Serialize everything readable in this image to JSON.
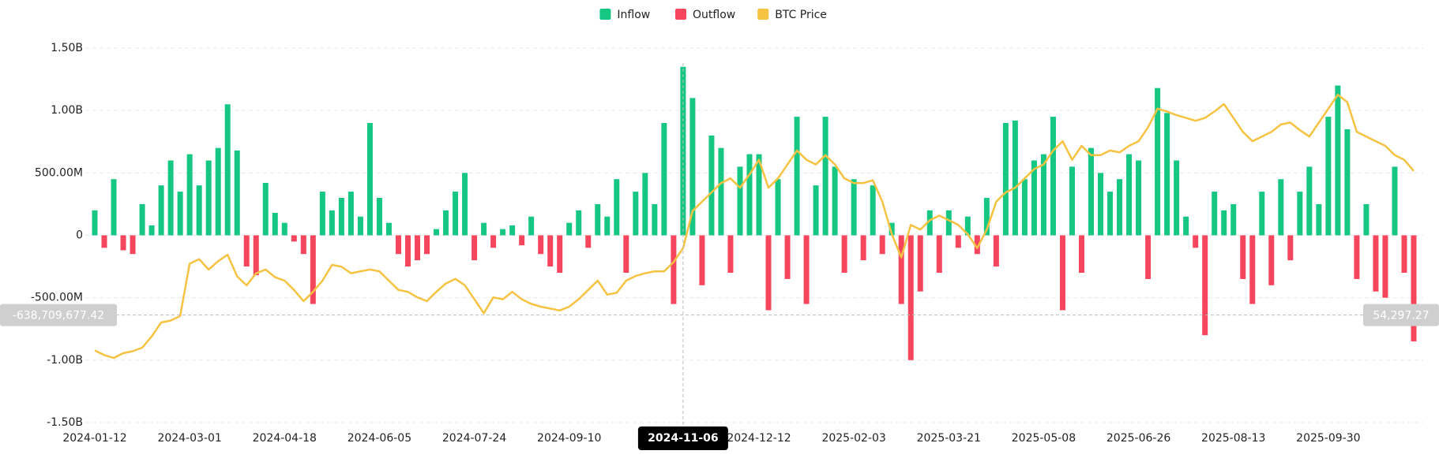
{
  "chart_data": {
    "type": "bar",
    "categories": [
      "2024-01-12",
      null,
      null,
      null,
      null,
      null,
      null,
      null,
      null,
      null,
      "2024-03-01",
      null,
      null,
      null,
      null,
      null,
      null,
      null,
      null,
      null,
      "2024-04-18",
      null,
      null,
      null,
      null,
      null,
      null,
      null,
      null,
      null,
      "2024-06-05",
      null,
      null,
      null,
      null,
      null,
      null,
      null,
      null,
      null,
      "2024-07-24",
      null,
      null,
      null,
      null,
      null,
      null,
      null,
      null,
      null,
      "2024-09-10",
      null,
      null,
      null,
      null,
      null,
      null,
      null,
      null,
      null,
      null,
      null,
      "2024-11-06",
      null,
      null,
      null,
      null,
      null,
      null,
      null,
      "2024-12-12",
      null,
      null,
      null,
      null,
      null,
      null,
      null,
      null,
      null,
      "2025-02-03",
      null,
      null,
      null,
      null,
      null,
      null,
      null,
      null,
      null,
      "2025-03-21",
      null,
      null,
      null,
      null,
      null,
      null,
      null,
      null,
      null,
      "2025-05-08",
      null,
      null,
      null,
      null,
      null,
      null,
      null,
      null,
      null,
      "2025-06-26",
      null,
      null,
      null,
      null,
      null,
      null,
      null,
      null,
      null,
      "2025-08-13",
      null,
      null,
      null,
      null,
      null,
      null,
      null,
      null,
      null,
      "2025-09-30",
      null,
      null,
      null,
      null,
      null,
      null,
      null,
      null,
      null
    ],
    "series": [
      {
        "name": "Inflow",
        "color": "#16c784",
        "values": [
          200000000.0,
          null,
          450000000.0,
          null,
          null,
          250000000.0,
          80000000.0,
          400000000.0,
          600000000.0,
          350000000.0,
          650000000.0,
          400000000.0,
          600000000.0,
          700000000.0,
          1050000000.0,
          680000000.0,
          null,
          null,
          420000000.0,
          180000000.0,
          100000000.0,
          null,
          null,
          null,
          350000000.0,
          200000000.0,
          300000000.0,
          350000000.0,
          150000000.0,
          900000000.0,
          300000000.0,
          100000000.0,
          null,
          null,
          null,
          null,
          50000000.0,
          200000000.0,
          350000000.0,
          500000000.0,
          null,
          100000000.0,
          null,
          50000000.0,
          80000000.0,
          null,
          150000000.0,
          null,
          null,
          null,
          100000000.0,
          200000000.0,
          null,
          250000000.0,
          150000000.0,
          450000000.0,
          null,
          350000000.0,
          500000000.0,
          250000000.0,
          900000000.0,
          null,
          1350000000.0,
          1100000000.0,
          null,
          800000000.0,
          700000000.0,
          null,
          550000000.0,
          650000000.0,
          650000000.0,
          null,
          450000000.0,
          null,
          950000000.0,
          null,
          400000000.0,
          950000000.0,
          550000000.0,
          null,
          450000000.0,
          null,
          400000000.0,
          null,
          100000000.0,
          null,
          null,
          null,
          200000000.0,
          null,
          200000000.0,
          null,
          150000000.0,
          null,
          300000000.0,
          null,
          900000000.0,
          920000000.0,
          450000000.0,
          600000000.0,
          650000000.0,
          950000000.0,
          null,
          550000000.0,
          null,
          700000000.0,
          500000000.0,
          350000000.0,
          450000000.0,
          650000000.0,
          600000000.0,
          null,
          1180000000.0,
          980000000.0,
          600000000.0,
          150000000.0,
          null,
          null,
          350000000.0,
          200000000.0,
          250000000.0,
          null,
          null,
          350000000.0,
          null,
          450000000.0,
          null,
          350000000.0,
          550000000.0,
          250000000.0,
          950000000.0,
          1200000000.0,
          850000000.0,
          null,
          250000000.0,
          null,
          null,
          550000000.0,
          null,
          null
        ]
      },
      {
        "name": "Outflow",
        "color": "#f6465d",
        "values": [
          null,
          -100000000.0,
          null,
          -120000000.0,
          -150000000.0,
          null,
          null,
          null,
          null,
          null,
          null,
          null,
          null,
          null,
          null,
          null,
          -250000000.0,
          -320000000.0,
          null,
          null,
          null,
          -50000000.0,
          -150000000.0,
          -550000000.0,
          null,
          null,
          null,
          null,
          null,
          null,
          null,
          null,
          -150000000.0,
          -250000000.0,
          -200000000.0,
          -150000000.0,
          null,
          null,
          null,
          null,
          -200000000.0,
          null,
          -100000000.0,
          null,
          null,
          -80000000.0,
          null,
          -150000000.0,
          -250000000.0,
          -300000000.0,
          null,
          null,
          -100000000.0,
          null,
          null,
          null,
          -300000000.0,
          null,
          null,
          null,
          null,
          -550000000.0,
          null,
          null,
          -400000000.0,
          null,
          null,
          -300000000.0,
          null,
          null,
          null,
          -600000000.0,
          null,
          -350000000.0,
          null,
          -550000000.0,
          null,
          null,
          null,
          -300000000.0,
          null,
          -200000000.0,
          null,
          -150000000.0,
          null,
          -550000000.0,
          -1000000000.0,
          -450000000.0,
          null,
          -300000000.0,
          null,
          -100000000.0,
          null,
          -150000000.0,
          null,
          -250000000.0,
          null,
          null,
          null,
          null,
          null,
          null,
          -600000000.0,
          null,
          -300000000.0,
          null,
          null,
          null,
          null,
          null,
          null,
          -350000000.0,
          null,
          null,
          null,
          null,
          -100000000.0,
          -800000000.0,
          null,
          null,
          null,
          -350000000.0,
          -550000000.0,
          null,
          -400000000.0,
          null,
          -200000000.0,
          null,
          null,
          null,
          null,
          null,
          null,
          -350000000.0,
          null,
          -450000000.0,
          -500000000.0,
          null,
          -300000000.0,
          -850000000.0
        ]
      },
      {
        "name": "BTC Price",
        "color": "#f5c242",
        "axis": "y2",
        "values": [
          43350,
          41900,
          41000,
          42500,
          43100,
          44200,
          47700,
          52000,
          52600,
          54000,
          70200,
          71600,
          68400,
          71000,
          73000,
          66300,
          63500,
          67200,
          68400,
          66000,
          64953,
          62073,
          58617,
          61497,
          64953,
          69849,
          69273,
          67257,
          67833,
          68409,
          67833,
          64953,
          62073,
          61497,
          59769,
          58617,
          61497,
          64089,
          65529,
          63513,
          59193,
          54873,
          59769,
          59193,
          61497,
          59193,
          57753,
          56889,
          56313,
          55737,
          56889,
          59193,
          62073,
          64953,
          60633,
          61209,
          64953,
          66393,
          67257,
          67833,
          67833,
          70713,
          75033,
          86553,
          89433,
          92313,
          95193,
          96633,
          93753,
          97857,
          102393,
          93753,
          96633,
          100953,
          105273,
          102393,
          100953,
          103833,
          100953,
          96633,
          95193,
          95193,
          96057,
          89433,
          79353,
          72153,
          82233,
          80793,
          83673,
          85113,
          83673,
          82233,
          79353,
          75033,
          80793,
          89433,
          92313,
          93753,
          96633,
          99513,
          100953,
          105273,
          108153,
          102393,
          106713,
          103833,
          103833,
          105273,
          104697,
          106713,
          108153,
          112473,
          118233,
          117369,
          116217,
          115353,
          114489,
          115353,
          117369,
          119673,
          115353,
          111033,
          108153,
          109593,
          111033,
          113337,
          113913,
          111609,
          109593,
          113913,
          118233,
          122553,
          120249,
          111033,
          109593,
          108153,
          106713,
          103833,
          102393,
          98937
        ]
      }
    ],
    "ylim": [
      -1500000000,
      1500000000
    ],
    "yticks": [
      {
        "value": 1500000000,
        "label": "1.50B"
      },
      {
        "value": 1000000000,
        "label": "1.00B"
      },
      {
        "value": 500000000,
        "label": "500.00M"
      },
      0,
      {
        "value": -500000000,
        "label": "-500.00M"
      },
      {
        "value": -1000000000,
        "label": "-1.00B"
      },
      {
        "value": -1500000000,
        "label": "-1.50B"
      }
    ],
    "y2lim": [
      21000,
      137000
    ],
    "grid": true,
    "legend": "top",
    "crosshair": {
      "y": {
        "value": -638709677.42,
        "label": "-638,709,677.42"
      },
      "y2": {
        "value": 54297.27,
        "label": "54,297.27"
      }
    }
  }
}
